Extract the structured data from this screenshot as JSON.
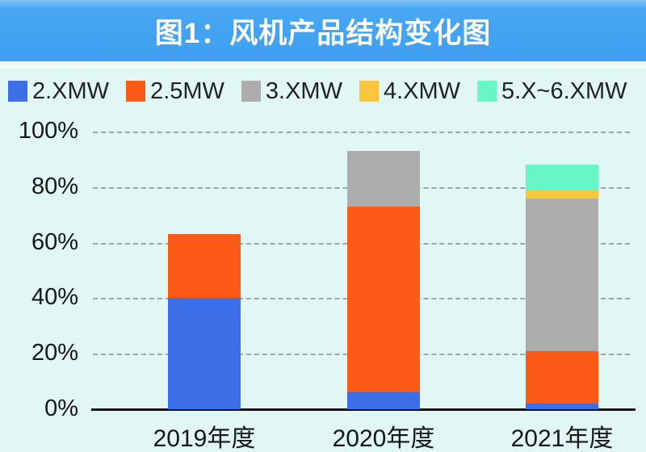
{
  "title": "图1：风机产品结构变化图",
  "legend": {
    "items": [
      {
        "label": "2.XMW",
        "color": "#3C6FE7",
        "swatch": "blue-square"
      },
      {
        "label": "2.5MW",
        "color": "#FB5A17",
        "swatch": "orange-square"
      },
      {
        "label": "3.XMW",
        "color": "#ADADAD",
        "swatch": "gray-square"
      },
      {
        "label": "4.XMW",
        "color": "#F9C63E",
        "swatch": "yellow-square"
      },
      {
        "label": "5.X~6.XMW",
        "color": "#68F6C6",
        "swatch": "mint-square"
      }
    ]
  },
  "chart_data": {
    "type": "bar",
    "stacked": true,
    "title": "图1：风机产品结构变化图",
    "categories": [
      "2019年度",
      "2020年度",
      "2021年度"
    ],
    "series": [
      {
        "name": "2.XMW",
        "color": "#3C6FE7",
        "values": [
          40,
          6,
          2
        ]
      },
      {
        "name": "2.5MW",
        "color": "#FB5A17",
        "values": [
          23,
          67,
          19
        ]
      },
      {
        "name": "3.XMW",
        "color": "#ADADAD",
        "values": [
          0,
          20,
          55
        ]
      },
      {
        "name": "4.XMW",
        "color": "#F9C63E",
        "values": [
          0,
          0,
          3
        ]
      },
      {
        "name": "5.X~6.XMW",
        "color": "#68F6C6",
        "values": [
          0,
          0,
          9
        ]
      }
    ],
    "bar_totals_pct": [
      63,
      93,
      88
    ],
    "xlabel": "",
    "ylabel": "",
    "ylim": [
      0,
      100
    ],
    "yticks": [
      "0%",
      "20%",
      "40%",
      "60%",
      "80%",
      "100%"
    ],
    "grid": "dashed-horizontal",
    "legend_position": "top"
  },
  "colors": {
    "header_bg": "#3FA2F3",
    "page_bg": "#E1F7F3",
    "title_text": "#FFFFFF",
    "axis_text": "#161616",
    "gridline": "#9BA8A6",
    "axis_line": "#141414"
  }
}
